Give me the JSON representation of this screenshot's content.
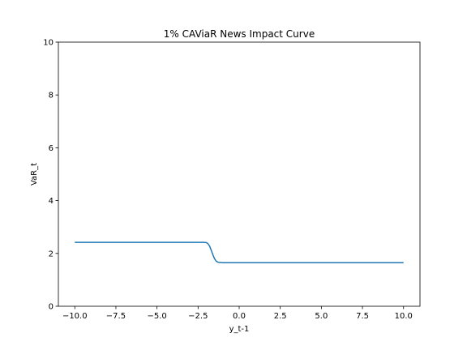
{
  "chart_data": {
    "type": "line",
    "title": "1% CAViaR News Impact Curve",
    "xlabel": "y_t-1",
    "ylabel": "VaR_t",
    "xlim": [
      -11.0,
      11.0
    ],
    "ylim": [
      0,
      10
    ],
    "x_ticks": [
      -10.0,
      -7.5,
      -5.0,
      -2.5,
      0.0,
      2.5,
      5.0,
      7.5,
      10.0
    ],
    "x_tick_labels": [
      "−10.0",
      "−7.5",
      "−5.0",
      "−2.5",
      "0.0",
      "2.5",
      "5.0",
      "7.5",
      "10.0"
    ],
    "y_ticks": [
      0,
      2,
      4,
      6,
      8,
      10
    ],
    "y_tick_labels": [
      "0",
      "2",
      "4",
      "6",
      "8",
      "10"
    ],
    "grid": false,
    "series": [
      {
        "color": "#1f77b4",
        "x": [
          -10.0,
          -7.5,
          -5.0,
          -3.0,
          -2.5,
          -2.2,
          -2.0,
          -1.9,
          -1.8,
          -1.7,
          -1.6,
          -1.5,
          -1.4,
          -1.3,
          -1.2,
          -1.0,
          -0.5,
          0.0,
          2.5,
          5.0,
          7.5,
          10.0
        ],
        "y": [
          2.42,
          2.42,
          2.42,
          2.42,
          2.42,
          2.42,
          2.41,
          2.37,
          2.28,
          2.12,
          1.95,
          1.8,
          1.71,
          1.67,
          1.66,
          1.65,
          1.65,
          1.65,
          1.65,
          1.65,
          1.65,
          1.65
        ]
      }
    ]
  }
}
